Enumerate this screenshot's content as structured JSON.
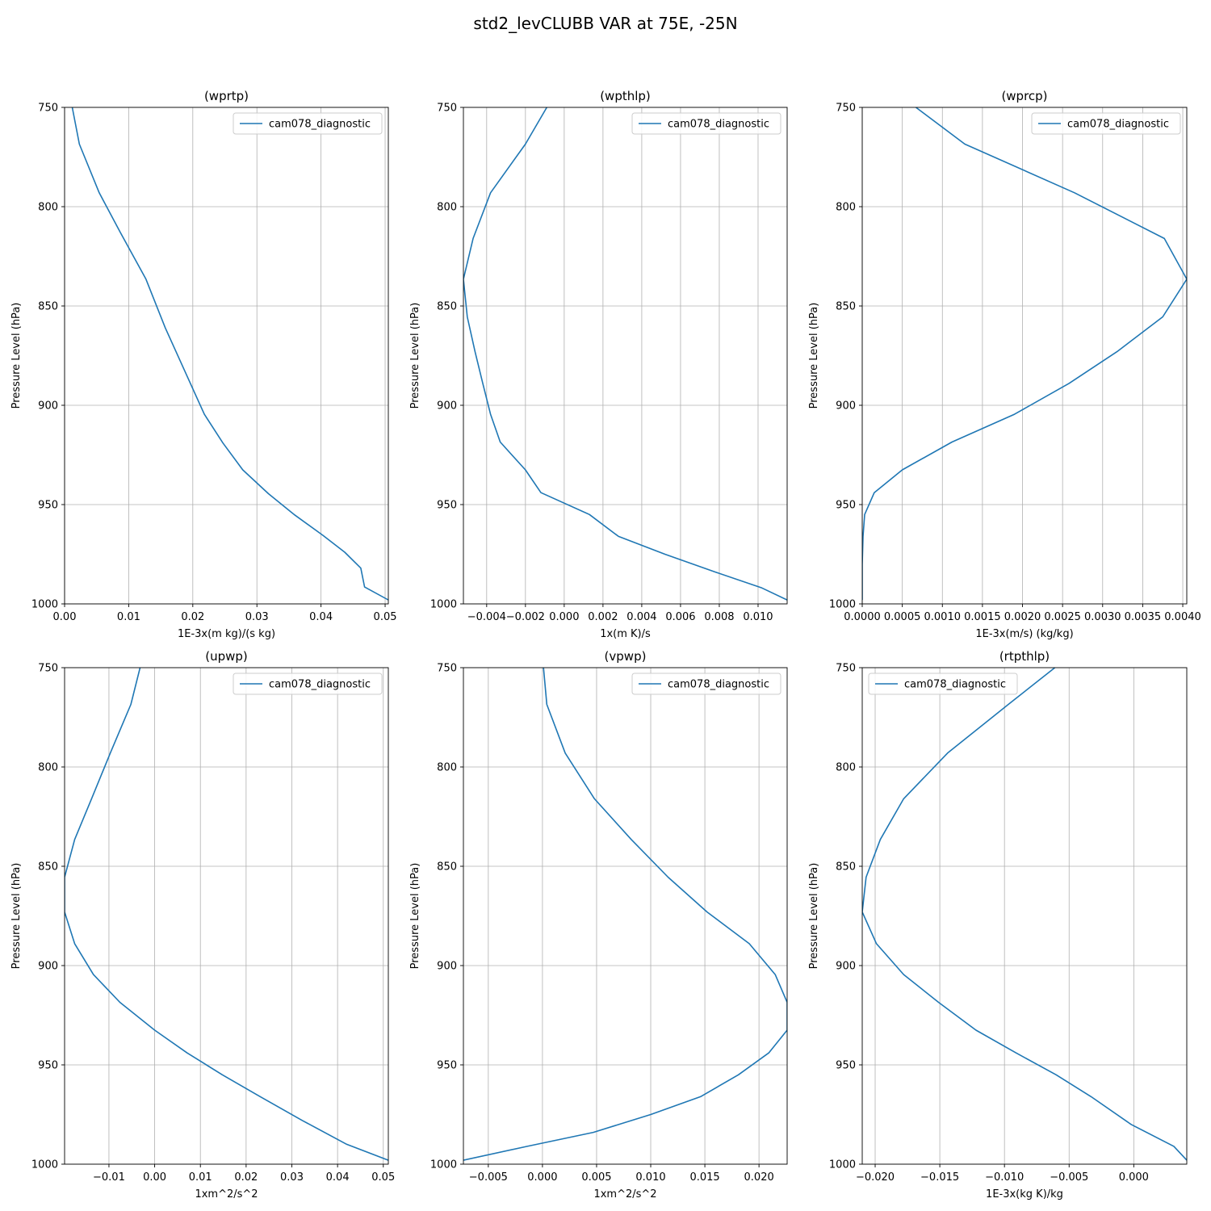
{
  "suptitle": "std2_levCLUBB VAR at 75E, -25N",
  "colors": {
    "series": "#1f77b4",
    "grid": "#b0b0b0",
    "frame": "#000000",
    "legend_border": "#cccccc"
  },
  "chart_data": [
    {
      "type": "line",
      "title": "(wprtp)",
      "xlabel": "1E-3x(m kg)/(s kg)",
      "ylabel": "Pressure Level (hPa)",
      "xlim": [
        0.0,
        0.0505
      ],
      "ylim": [
        1000,
        750
      ],
      "xticks": [
        0.0,
        0.01,
        0.02,
        0.03,
        0.04,
        0.05
      ],
      "xtick_labels": [
        "0.00",
        "0.01",
        "0.02",
        "0.03",
        "0.04",
        "0.05"
      ],
      "yticks": [
        750,
        800,
        850,
        900,
        950,
        1000
      ],
      "ytick_labels": [
        "750",
        "800",
        "850",
        "900",
        "950",
        "1000"
      ],
      "grid": true,
      "legend": {
        "loc": "upper right",
        "entries": [
          "cam078_diagnostic"
        ]
      },
      "series": [
        {
          "name": "cam078_diagnostic",
          "x": [
            0.0012,
            0.0023,
            0.0054,
            0.0087,
            0.0127,
            0.0157,
            0.0192,
            0.0218,
            0.0247,
            0.0278,
            0.0318,
            0.0358,
            0.0403,
            0.0437,
            0.0462,
            0.0468,
            0.0505
          ],
          "y": [
            750,
            768.5,
            793,
            813,
            836.5,
            861,
            886,
            904.5,
            919,
            932.5,
            944.5,
            955,
            965.5,
            974,
            982,
            991.5,
            998
          ]
        }
      ]
    },
    {
      "type": "line",
      "title": "(wpthlp)",
      "xlabel": "1x(m K)/s",
      "ylabel": "Pressure Level (hPa)",
      "xlim": [
        -0.0052,
        0.0115
      ],
      "ylim": [
        1000,
        750
      ],
      "xticks": [
        -0.004,
        -0.002,
        0.0,
        0.002,
        0.004,
        0.006,
        0.008,
        0.01
      ],
      "xtick_labels": [
        "−0.004",
        "−0.002",
        "0.000",
        "0.002",
        "0.004",
        "0.006",
        "0.008",
        "0.010"
      ],
      "yticks": [
        750,
        800,
        850,
        900,
        950,
        1000
      ],
      "ytick_labels": [
        "750",
        "800",
        "850",
        "900",
        "950",
        "1000"
      ],
      "grid": true,
      "legend": {
        "loc": "upper right",
        "entries": [
          "cam078_diagnostic"
        ]
      },
      "series": [
        {
          "name": "cam078_diagnostic",
          "x": [
            -0.0009,
            -0.002,
            -0.0038,
            -0.0047,
            -0.0052,
            -0.005,
            -0.0046,
            -0.0042,
            -0.0038,
            -0.0033,
            -0.002,
            -0.0012,
            0.0013,
            0.0028,
            0.0052,
            0.0078,
            0.0102,
            0.0115
          ],
          "y": [
            750,
            768.5,
            793,
            816,
            836.5,
            855.5,
            873,
            889,
            904.5,
            918.5,
            932.5,
            944,
            955,
            966,
            975,
            984,
            992,
            998
          ]
        }
      ]
    },
    {
      "type": "line",
      "title": "(wprcp)",
      "xlabel": "1E-3x(m/s) (kg/kg)",
      "ylabel": "Pressure Level (hPa)",
      "xlim": [
        0.0,
        0.00405
      ],
      "ylim": [
        1000,
        750
      ],
      "xticks": [
        0.0,
        0.0005,
        0.001,
        0.0015,
        0.002,
        0.0025,
        0.003,
        0.0035,
        0.004
      ],
      "xtick_labels": [
        "0.0000",
        "0.0005",
        "0.0010",
        "0.0015",
        "0.0020",
        "0.0025",
        "0.0030",
        "0.0035",
        "0.0040"
      ],
      "yticks": [
        750,
        800,
        850,
        900,
        950,
        1000
      ],
      "ytick_labels": [
        "750",
        "800",
        "850",
        "900",
        "950",
        "1000"
      ],
      "grid": true,
      "legend": {
        "loc": "upper right",
        "entries": [
          "cam078_diagnostic"
        ]
      },
      "series": [
        {
          "name": "cam078_diagnostic",
          "x": [
            0.00067,
            0.00128,
            0.00265,
            0.00377,
            0.00405,
            0.00375,
            0.00318,
            0.00258,
            0.0019,
            0.00112,
            0.0005,
            0.00015,
            3e-05,
            1e-05,
            0.0,
            0.0
          ],
          "y": [
            750,
            768.5,
            793,
            816,
            836.5,
            855.5,
            873,
            889,
            904.5,
            918.5,
            932.5,
            944,
            955,
            966,
            980,
            998
          ]
        }
      ]
    },
    {
      "type": "line",
      "title": "(upwp)",
      "xlabel": "1xm^2/s^2",
      "ylabel": "Pressure Level (hPa)",
      "xlim": [
        -0.0197,
        0.0511
      ],
      "ylim": [
        1000,
        750
      ],
      "xticks": [
        -0.01,
        0.0,
        0.01,
        0.02,
        0.03,
        0.04,
        0.05
      ],
      "xtick_labels": [
        "−0.01",
        "0.00",
        "0.01",
        "0.02",
        "0.03",
        "0.04",
        "0.05"
      ],
      "yticks": [
        750,
        800,
        850,
        900,
        950,
        1000
      ],
      "ytick_labels": [
        "750",
        "800",
        "850",
        "900",
        "950",
        "1000"
      ],
      "grid": true,
      "legend": {
        "loc": "upper right",
        "entries": [
          "cam078_diagnostic"
        ]
      },
      "series": [
        {
          "name": "cam078_diagnostic",
          "x": [
            -0.0032,
            -0.0052,
            -0.0097,
            -0.0138,
            -0.0175,
            -0.0197,
            -0.0197,
            -0.0175,
            -0.0134,
            -0.0076,
            0.0,
            0.0071,
            0.0148,
            0.0231,
            0.0323,
            0.042,
            0.0511
          ],
          "y": [
            750,
            768.5,
            793,
            816,
            836.5,
            855.5,
            873,
            889,
            904.5,
            918.5,
            932.5,
            944,
            955,
            966,
            978,
            990,
            998
          ]
        }
      ]
    },
    {
      "type": "line",
      "title": "(vpwp)",
      "xlabel": "1xm^2/s^2",
      "ylabel": "Pressure Level (hPa)",
      "xlim": [
        -0.0073,
        0.0226
      ],
      "ylim": [
        1000,
        750
      ],
      "xticks": [
        -0.005,
        0.0,
        0.005,
        0.01,
        0.015,
        0.02
      ],
      "xtick_labels": [
        "−0.005",
        "0.000",
        "0.005",
        "0.010",
        "0.015",
        "0.020"
      ],
      "yticks": [
        750,
        800,
        850,
        900,
        950,
        1000
      ],
      "ytick_labels": [
        "750",
        "800",
        "850",
        "900",
        "950",
        "1000"
      ],
      "grid": true,
      "legend": {
        "loc": "upper right",
        "entries": [
          "cam078_diagnostic"
        ]
      },
      "series": [
        {
          "name": "cam078_diagnostic",
          "x": [
            0.0001,
            0.0004,
            0.0021,
            0.0048,
            0.0082,
            0.0116,
            0.0152,
            0.0191,
            0.0215,
            0.0226,
            0.0226,
            0.0209,
            0.0181,
            0.0146,
            0.01,
            0.0047,
            -0.0014,
            -0.0073
          ],
          "y": [
            750,
            768.5,
            793,
            816,
            836.5,
            855.5,
            873,
            889,
            904.5,
            918.5,
            932.5,
            944,
            955,
            966,
            975,
            984,
            991,
            998
          ]
        }
      ]
    },
    {
      "type": "line",
      "title": "(rtpthlp)",
      "xlabel": "1E-3x(kg K)/kg",
      "ylabel": "Pressure Level (hPa)",
      "xlim": [
        -0.021,
        0.0041
      ],
      "ylim": [
        1000,
        750
      ],
      "xticks": [
        -0.02,
        -0.015,
        -0.01,
        -0.005,
        0.0
      ],
      "xtick_labels": [
        "−0.020",
        "−0.015",
        "−0.010",
        "−0.005",
        "0.000"
      ],
      "yticks": [
        750,
        800,
        850,
        900,
        950,
        1000
      ],
      "ytick_labels": [
        "750",
        "800",
        "850",
        "900",
        "950",
        "1000"
      ],
      "grid": true,
      "legend": {
        "loc": "upper left",
        "entries": [
          "cam078_diagnostic"
        ]
      },
      "series": [
        {
          "name": "cam078_diagnostic",
          "x": [
            -0.0061,
            -0.0097,
            -0.0144,
            -0.0178,
            -0.0196,
            -0.0207,
            -0.021,
            -0.0199,
            -0.0178,
            -0.0151,
            -0.0122,
            -0.0091,
            -0.006,
            -0.0033,
            -0.0002,
            0.0031,
            0.0041
          ],
          "y": [
            750,
            768.5,
            793,
            816,
            836.5,
            855.5,
            873,
            889,
            904.5,
            918.5,
            932.5,
            944,
            955,
            966,
            980,
            991,
            998
          ]
        }
      ]
    }
  ]
}
